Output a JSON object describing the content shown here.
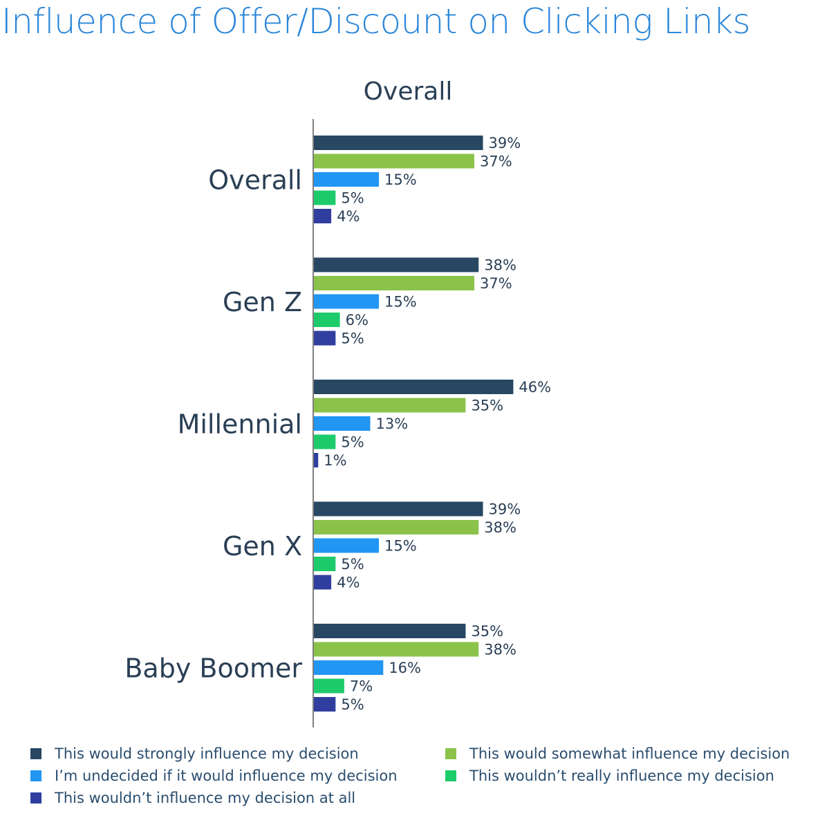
{
  "page": {
    "title": "Influence of Offer/Discount on Clicking Links"
  },
  "chart_data": {
    "type": "bar",
    "orientation": "horizontal",
    "title": "Overall",
    "categories": [
      "Overall",
      "Gen Z",
      "Millennial",
      "Gen X",
      "Baby Boomer"
    ],
    "series": [
      {
        "name": "This would strongly influence my decision",
        "color": "#274763",
        "values": [
          39,
          38,
          46,
          39,
          35
        ]
      },
      {
        "name": "This would somewhat influence my decision",
        "color": "#8bc34a",
        "values": [
          37,
          37,
          35,
          38,
          38
        ]
      },
      {
        "name": "I’m undecided if it would influence my decision",
        "color": "#2196f3",
        "values": [
          15,
          15,
          13,
          15,
          16
        ]
      },
      {
        "name": "This wouldn’t really influence my decision",
        "color": "#1ecb6b",
        "values": [
          5,
          6,
          5,
          5,
          7
        ]
      },
      {
        "name": "This wouldn’t influence my decision at all",
        "color": "#303f9f",
        "values": [
          4,
          5,
          1,
          4,
          5
        ]
      }
    ],
    "value_suffix": "%",
    "xlabel": "",
    "ylabel": "",
    "legend_position": "bottom",
    "grid": false
  }
}
